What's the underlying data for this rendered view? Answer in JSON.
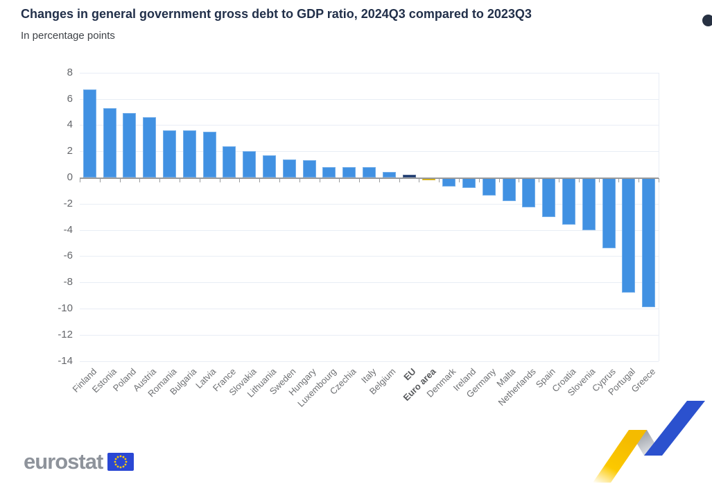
{
  "header": {
    "title": "Changes in general government gross debt to GDP ratio, 2024Q3 compared to 2023Q3",
    "subtitle": "In percentage points"
  },
  "icons": {
    "context_menu": "dark-circle-menu-button"
  },
  "chart_data": {
    "type": "bar",
    "title": "Changes in general government gross debt to GDP ratio, 2024Q3 compared to 2023Q3",
    "subtitle": "In percentage points",
    "categories": [
      "Finland",
      "Estonia",
      "Poland",
      "Austria",
      "Romania",
      "Bulgaria",
      "Latvia",
      "France",
      "Slovakia",
      "Lithuania",
      "Sweden",
      "Hungary",
      "Luxembourg",
      "Czechia",
      "Italy",
      "Belgium",
      "EU",
      "Euro area",
      "Denmark",
      "Ireland",
      "Germany",
      "Malta",
      "Netherlands",
      "Spain",
      "Croatia",
      "Slovenia",
      "Cyprus",
      "Portugal",
      "Greece"
    ],
    "values": [
      6.7,
      5.3,
      4.9,
      4.6,
      3.6,
      3.6,
      3.5,
      2.4,
      2.0,
      1.7,
      1.4,
      1.3,
      0.8,
      0.8,
      0.8,
      0.4,
      0.2,
      -0.2,
      -0.7,
      -0.8,
      -1.4,
      -1.8,
      -2.3,
      -3.0,
      -3.6,
      -4.0,
      -5.4,
      -8.8,
      -9.9
    ],
    "xlabel": "",
    "ylabel": "In percentage points",
    "ylim": [
      -14,
      8
    ],
    "yticks": [
      8,
      6,
      4,
      2,
      0,
      -2,
      -4,
      -6,
      -8,
      -10,
      -12,
      -14
    ],
    "grid": true,
    "legend": "none",
    "emphasis": [
      "EU",
      "Euro area"
    ],
    "colors": {
      "default": "#4191E2",
      "EU": "#17356B",
      "Euro area": "#D2A800"
    }
  },
  "footer": {
    "logo_text": "eurostat",
    "flag_icon": "eu-flag",
    "ribbon_colors": {
      "yellow": "#FBC800",
      "gray": "#8F949C",
      "blue": "#2B51CE"
    }
  }
}
